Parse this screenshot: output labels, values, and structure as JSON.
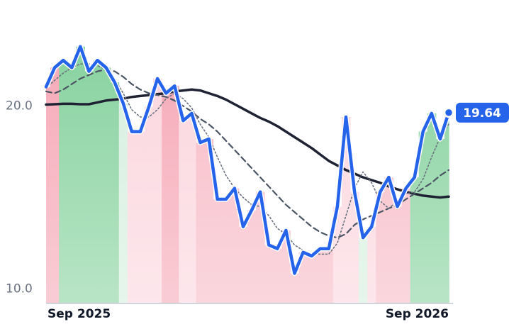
{
  "chart_data": {
    "type": "line",
    "categories": [
      "Sep 2025",
      null,
      null,
      null,
      null,
      null,
      null,
      null,
      null,
      null,
      null,
      null,
      null,
      null,
      null,
      null,
      null,
      null,
      null,
      null,
      null,
      null,
      null,
      null,
      null,
      null,
      null,
      null,
      null,
      null,
      null,
      null,
      null,
      null,
      null,
      null,
      null,
      null,
      null,
      null,
      null,
      null,
      null,
      null,
      null,
      null,
      null,
      "Sep 2026"
    ],
    "series": [
      {
        "color": "#2563eb",
        "values": [
          21.05,
          22.1,
          22.5,
          22.1,
          23.25,
          21.9,
          22.5,
          22.1,
          21.3,
          20.15,
          18.6,
          18.6,
          19.96,
          21.5,
          20.7,
          21.1,
          19.2,
          19.6,
          18.0,
          18.2,
          14.9,
          14.9,
          15.5,
          13.4,
          14.3,
          15.3,
          12.4,
          12.2,
          13.2,
          10.85,
          12.0,
          11.8,
          12.2,
          12.2,
          14.5,
          19.4,
          15.3,
          12.8,
          13.4,
          15.3,
          16.1,
          14.5,
          15.5,
          16.1,
          18.6,
          19.6,
          18.2,
          19.64
        ]
      },
      {
        "color": "#6b7280",
        "values": [
          21.0,
          21.4,
          21.8,
          22.1,
          22.3,
          22.3,
          22.2,
          22.0,
          21.5,
          20.7,
          19.8,
          19.4,
          19.4,
          19.8,
          20.4,
          20.7,
          20.4,
          19.9,
          19.0,
          18.3,
          17.2,
          16.2,
          15.5,
          15.0,
          14.6,
          14.5,
          14.0,
          13.3,
          13.0,
          12.4,
          12.1,
          11.9,
          11.9,
          11.9,
          12.5,
          14.0,
          15.5,
          16.4,
          15.8,
          14.8,
          14.4,
          14.8,
          15.2,
          15.3,
          16.0,
          17.2,
          18.3,
          19.0
        ]
      },
      {
        "color": "#4b5563",
        "values": [
          20.8,
          20.7,
          20.9,
          21.2,
          21.5,
          21.7,
          21.9,
          22.0,
          21.9,
          21.6,
          21.2,
          20.9,
          20.7,
          20.6,
          20.5,
          20.3,
          20.0,
          19.7,
          19.3,
          19.0,
          18.6,
          18.1,
          17.6,
          17.1,
          16.6,
          16.1,
          15.6,
          15.1,
          14.6,
          14.2,
          13.8,
          13.4,
          13.1,
          12.9,
          12.8,
          13.0,
          13.5,
          13.8,
          14.0,
          14.2,
          14.4,
          14.6,
          14.9,
          15.2,
          15.5,
          15.8,
          16.2,
          16.5
        ]
      },
      {
        "color": "#1e2233",
        "values": [
          20.08,
          20.1,
          20.12,
          20.12,
          20.1,
          20.1,
          20.2,
          20.3,
          20.35,
          20.4,
          20.5,
          20.55,
          20.6,
          20.65,
          20.7,
          20.8,
          20.85,
          20.9,
          20.85,
          20.7,
          20.55,
          20.35,
          20.1,
          19.85,
          19.6,
          19.35,
          19.15,
          18.9,
          18.6,
          18.3,
          18.0,
          17.7,
          17.35,
          17.0,
          16.75,
          16.5,
          16.3,
          16.1,
          15.95,
          15.8,
          15.6,
          15.45,
          15.3,
          15.2,
          15.1,
          15.05,
          15.0,
          15.05
        ]
      }
    ],
    "band_colors": [
      "#f5a3b2",
      "#f5a3b2",
      "#7fcf98",
      "#7fcf98",
      "#7fcf98",
      "#7fcf98",
      "#7fcf98",
      "#7fcf98",
      "#7fcf98",
      "#d3eedc",
      "#fbd3dc",
      "#fbd3dc",
      "#fbd3dc",
      "#fbd3dc",
      "#f5a3b2",
      "#f5a3b2",
      "#fbd3dc",
      "#fbd3dc",
      "#f7b6c2",
      "#f7b6c2",
      "#f7b6c2",
      "#f7b6c2",
      "#f7b6c2",
      "#f7b6c2",
      "#f7b6c2",
      "#f7b6c2",
      "#f7b6c2",
      "#f7b6c2",
      "#f7b6c2",
      "#f7b6c2",
      "#f7b6c2",
      "#f7b6c2",
      "#f7b6c2",
      "#f7b6c2",
      "#fbd3dc",
      "#fbd3dc",
      "#fbd3dc",
      "#d3eedc",
      "#fbd3dc",
      "#f7b6c2",
      "#f7b6c2",
      "#f7b6c2",
      "#f7b6c2",
      "#7fcf98",
      "#7fcf98",
      "#7fcf98",
      "#7fcf98",
      "#7fcf98"
    ],
    "ylim": [
      9.2,
      25.8
    ],
    "yticks": [
      {
        "value": 10,
        "label": "10.0"
      },
      {
        "value": 20,
        "label": "20.0"
      }
    ]
  }
}
